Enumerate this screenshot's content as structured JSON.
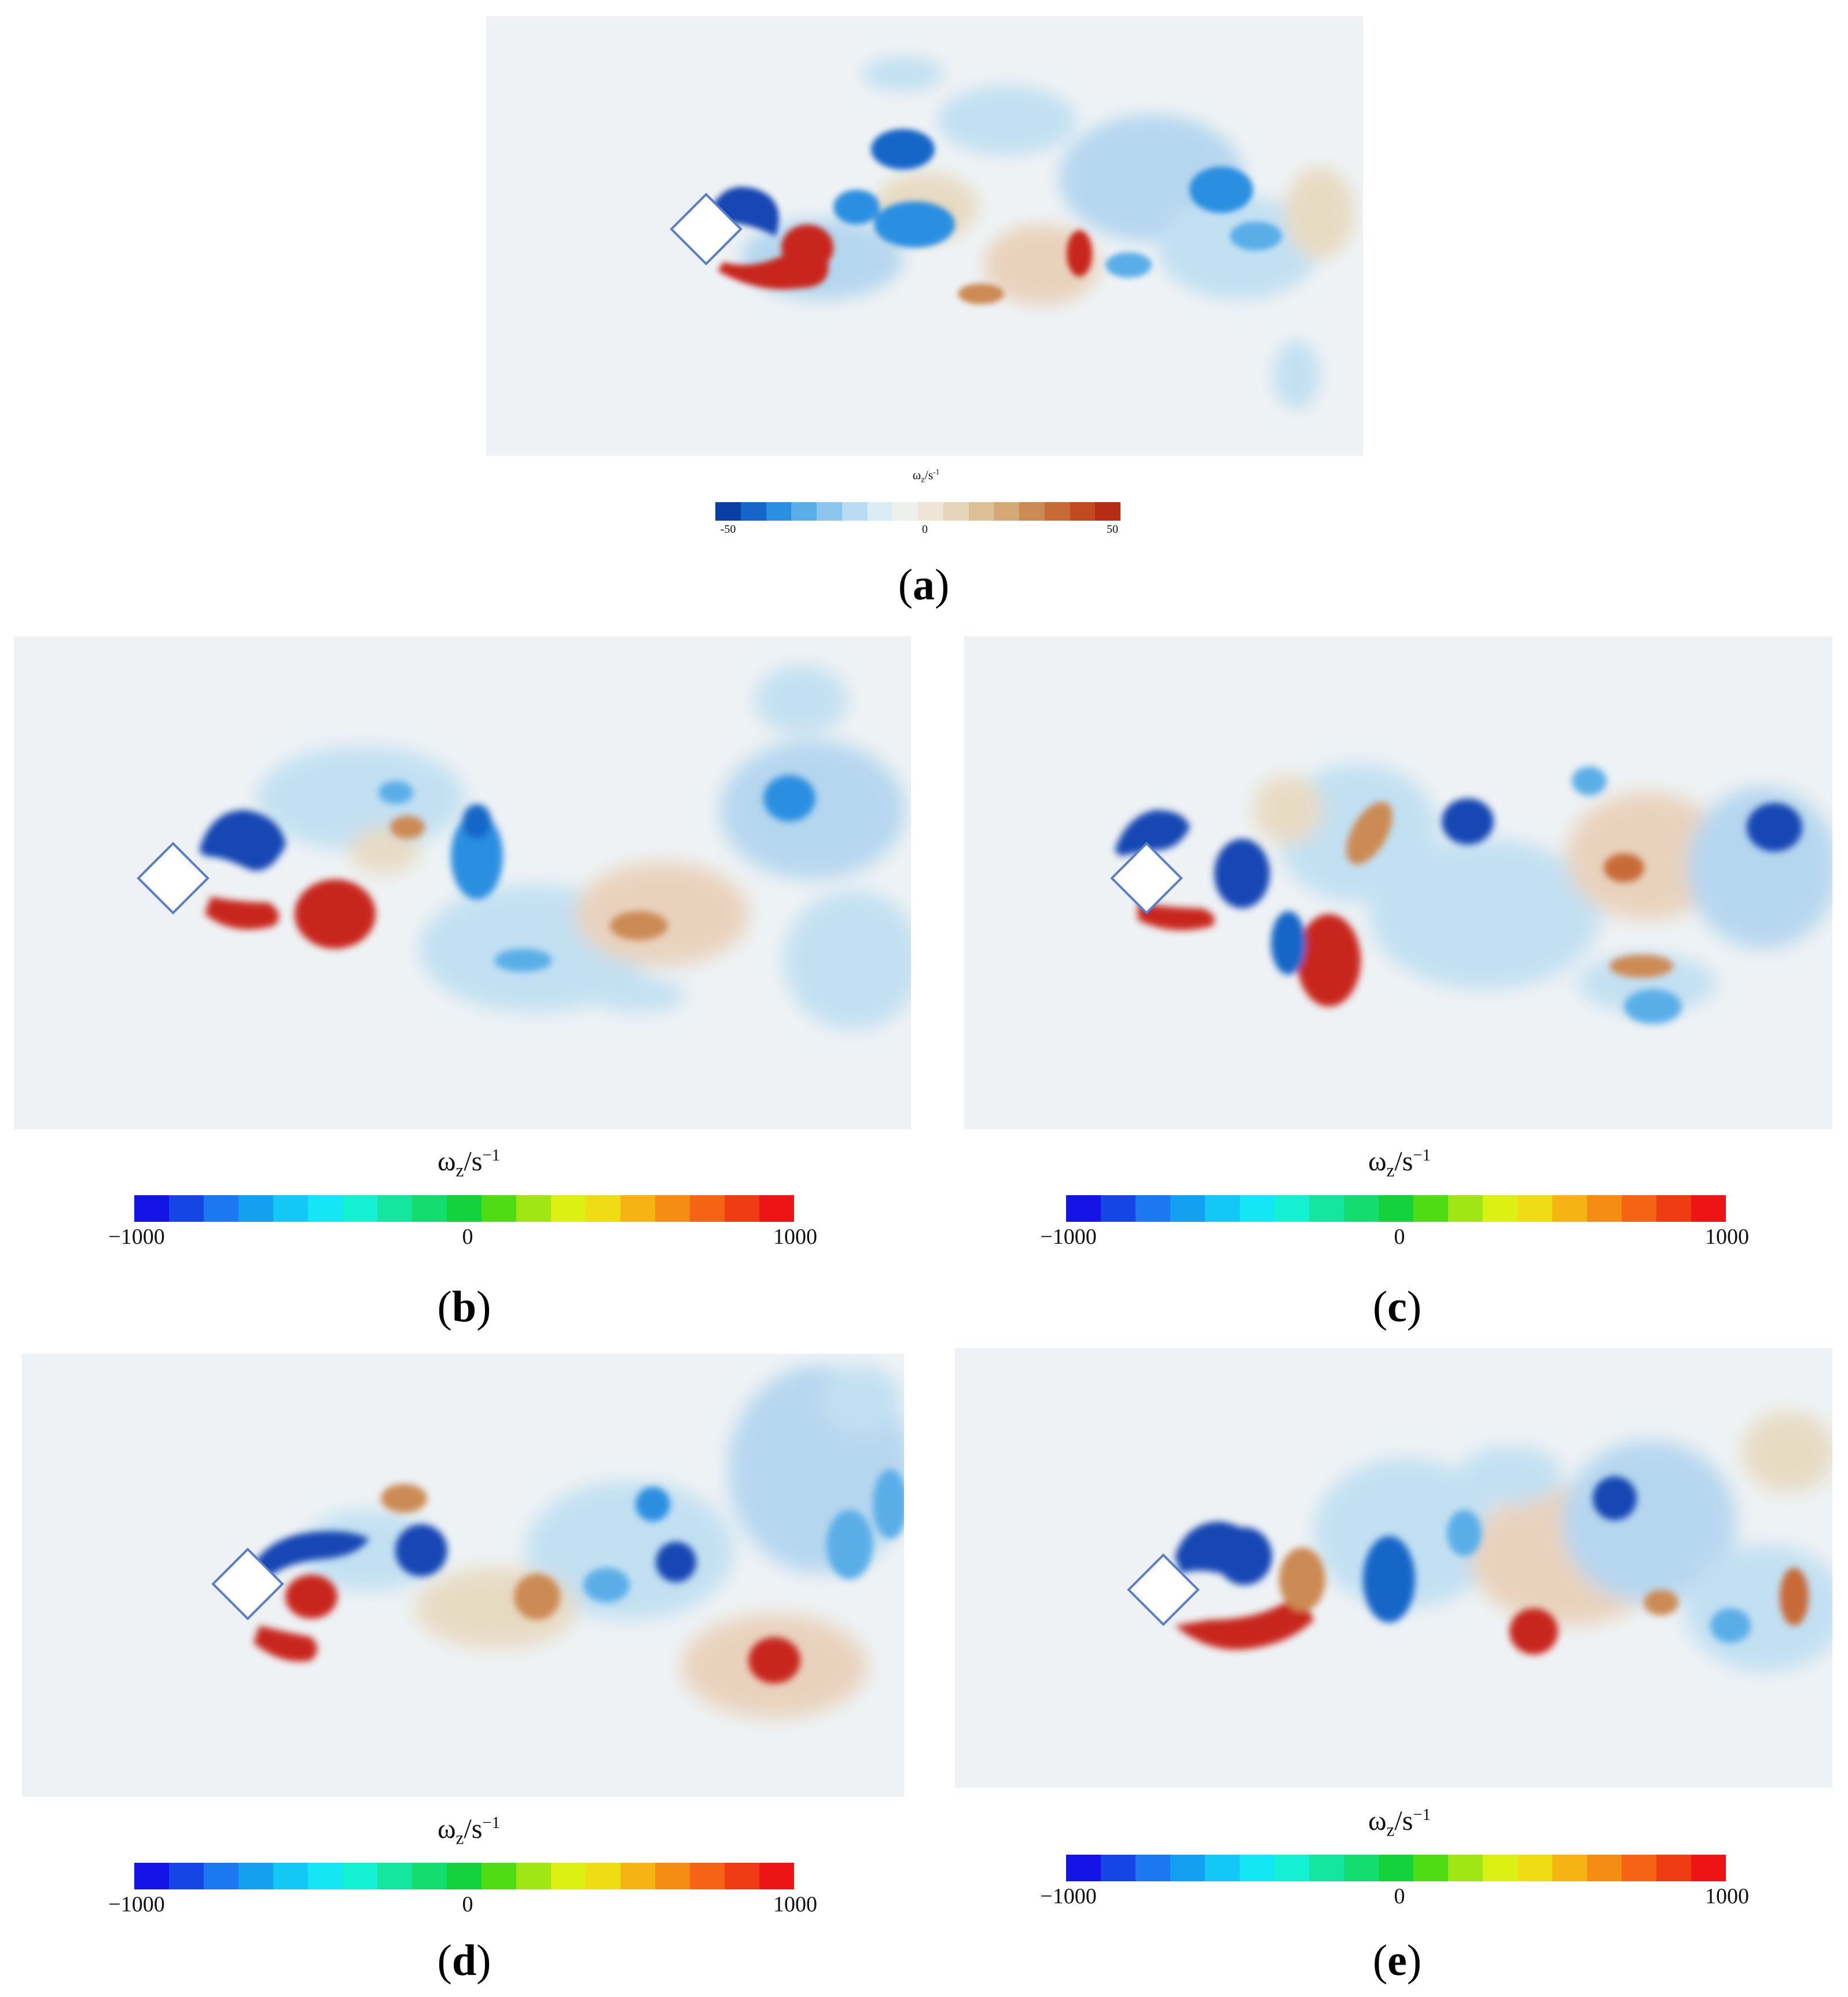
{
  "panels": [
    {
      "id": "a",
      "label": "a",
      "legend_title_main": "ω",
      "legend_title_sub": "z",
      "legend_title_rest": "/s",
      "legend_title_sup": "-1",
      "ticks": [
        "-50",
        "0",
        "50"
      ],
      "palette": "coolwarm"
    },
    {
      "id": "b",
      "label": "b",
      "legend_title_main": "ω",
      "legend_title_sub": "z",
      "legend_title_rest": "/s",
      "legend_title_sup": "−1",
      "ticks": [
        "−1000",
        "0",
        "1000"
      ],
      "palette": "rainbow"
    },
    {
      "id": "c",
      "label": "c",
      "legend_title_main": "ω",
      "legend_title_sub": "z",
      "legend_title_rest": "/s",
      "legend_title_sup": "−1",
      "ticks": [
        "−1000",
        "0",
        "1000"
      ],
      "palette": "rainbow"
    },
    {
      "id": "d",
      "label": "d",
      "legend_title_main": "ω",
      "legend_title_sub": "z",
      "legend_title_rest": "/s",
      "legend_title_sup": "−1",
      "ticks": [
        "−1000",
        "0",
        "1000"
      ],
      "palette": "rainbow"
    },
    {
      "id": "e",
      "label": "e",
      "legend_title_main": "ω",
      "legend_title_sub": "z",
      "legend_title_rest": "/s",
      "legend_title_sup": "−1",
      "ticks": [
        "−1000",
        "0",
        "1000"
      ],
      "palette": "rainbow"
    }
  ],
  "palettes": {
    "coolwarm": [
      "#0b3fa6",
      "#1466c8",
      "#2a8fe0",
      "#5aaee8",
      "#8cc6ee",
      "#b8dcf2",
      "#dcecf5",
      "#eef0ee",
      "#ede6d6",
      "#e6d5b8",
      "#dcc096",
      "#d4a877",
      "#cc8a55",
      "#c76a38",
      "#c24a22",
      "#b72c14"
    ],
    "rainbow": [
      "#1414e6",
      "#1446e6",
      "#1c78f0",
      "#14a0f0",
      "#14c8f5",
      "#14e6f5",
      "#14f0d2",
      "#14e6a0",
      "#14dc6e",
      "#14d23c",
      "#50dc14",
      "#a0e614",
      "#dcf014",
      "#f0dc14",
      "#f5b414",
      "#f58c14",
      "#f56414",
      "#f03c14",
      "#ec1414"
    ]
  },
  "colors": {
    "field_bg": "#eef2f4",
    "positive_vortex": "#c8281c",
    "negative_vortex": "#1446b4",
    "weak_positive": "#e8cbb0",
    "weak_negative": "#a8d0ee"
  }
}
